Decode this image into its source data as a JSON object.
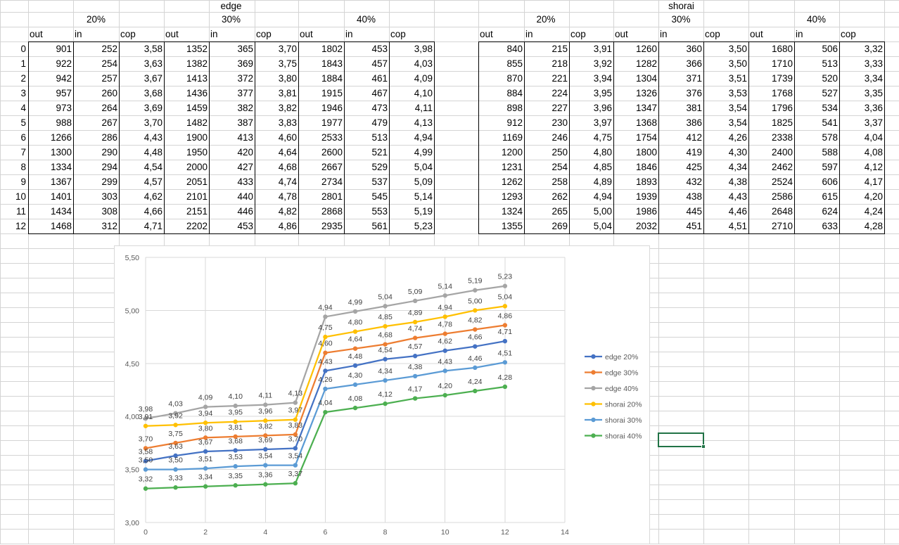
{
  "sheet": {
    "groups": [
      "edge",
      "shorai"
    ],
    "percents": [
      "20%",
      "30%",
      "40%"
    ],
    "col_labels": [
      "out",
      "in",
      "cop"
    ],
    "row_index": [
      "0",
      "1",
      "2",
      "3",
      "4",
      "5",
      "6",
      "7",
      "8",
      "9",
      "10",
      "11",
      "12"
    ],
    "edge": {
      "20%": {
        "out": [
          "901",
          "922",
          "942",
          "957",
          "973",
          "988",
          "1266",
          "1300",
          "1334",
          "1367",
          "1401",
          "1434",
          "1468"
        ],
        "in": [
          "252",
          "254",
          "257",
          "260",
          "264",
          "267",
          "286",
          "290",
          "294",
          "299",
          "303",
          "308",
          "312"
        ],
        "cop": [
          "3,58",
          "3,63",
          "3,67",
          "3,68",
          "3,69",
          "3,70",
          "4,43",
          "4,48",
          "4,54",
          "4,57",
          "4,62",
          "4,66",
          "4,71"
        ]
      },
      "30%": {
        "out": [
          "1352",
          "1382",
          "1413",
          "1436",
          "1459",
          "1482",
          "1900",
          "1950",
          "2000",
          "2051",
          "2101",
          "2151",
          "2202"
        ],
        "in": [
          "365",
          "369",
          "372",
          "377",
          "382",
          "387",
          "413",
          "420",
          "427",
          "433",
          "440",
          "446",
          "453"
        ],
        "cop": [
          "3,70",
          "3,75",
          "3,80",
          "3,81",
          "3,82",
          "3,83",
          "4,60",
          "4,64",
          "4,68",
          "4,74",
          "4,78",
          "4,82",
          "4,86"
        ]
      },
      "40%": {
        "out": [
          "1802",
          "1843",
          "1884",
          "1915",
          "1946",
          "1977",
          "2533",
          "2600",
          "2667",
          "2734",
          "2801",
          "2868",
          "2935"
        ],
        "in": [
          "453",
          "457",
          "461",
          "467",
          "473",
          "479",
          "513",
          "521",
          "529",
          "537",
          "545",
          "553",
          "561"
        ],
        "cop": [
          "3,98",
          "4,03",
          "4,09",
          "4,10",
          "4,11",
          "4,13",
          "4,94",
          "4,99",
          "5,04",
          "5,09",
          "5,14",
          "5,19",
          "5,23"
        ]
      }
    },
    "shorai": {
      "20%": {
        "out": [
          "840",
          "855",
          "870",
          "884",
          "898",
          "912",
          "1169",
          "1200",
          "1231",
          "1262",
          "1293",
          "1324",
          "1355"
        ],
        "in": [
          "215",
          "218",
          "221",
          "224",
          "227",
          "230",
          "246",
          "250",
          "254",
          "258",
          "262",
          "265",
          "269"
        ],
        "cop": [
          "3,91",
          "3,92",
          "3,94",
          "3,95",
          "3,96",
          "3,97",
          "4,75",
          "4,80",
          "4,85",
          "4,89",
          "4,94",
          "5,00",
          "5,04"
        ]
      },
      "30%": {
        "out": [
          "1260",
          "1282",
          "1304",
          "1326",
          "1347",
          "1368",
          "1754",
          "1800",
          "1846",
          "1893",
          "1939",
          "1986",
          "2032"
        ],
        "in": [
          "360",
          "366",
          "371",
          "376",
          "381",
          "386",
          "412",
          "419",
          "425",
          "432",
          "438",
          "445",
          "451"
        ],
        "cop": [
          "3,50",
          "3,50",
          "3,51",
          "3,53",
          "3,54",
          "3,54",
          "4,26",
          "4,30",
          "4,34",
          "4,38",
          "4,43",
          "4,46",
          "4,51"
        ]
      },
      "40%": {
        "out": [
          "1680",
          "1710",
          "1739",
          "1768",
          "1796",
          "1825",
          "2338",
          "2400",
          "2462",
          "2524",
          "2586",
          "2648",
          "2710"
        ],
        "in": [
          "506",
          "513",
          "520",
          "527",
          "534",
          "541",
          "578",
          "588",
          "597",
          "606",
          "615",
          "624",
          "633"
        ],
        "cop": [
          "3,32",
          "3,33",
          "3,34",
          "3,35",
          "3,36",
          "3,37",
          "4,04",
          "4,08",
          "4,12",
          "4,17",
          "4,20",
          "4,24",
          "4,28"
        ]
      }
    }
  },
  "chart_data": {
    "type": "line",
    "title": "",
    "xlabel": "",
    "ylabel": "",
    "xlim": [
      0,
      14
    ],
    "ylim": [
      3.0,
      5.5
    ],
    "x_ticks": [
      "0",
      "2",
      "4",
      "6",
      "8",
      "10",
      "12",
      "14"
    ],
    "y_ticks": [
      "3,00",
      "3,50",
      "4,00",
      "4,50",
      "5,00",
      "5,50"
    ],
    "x": [
      0,
      1,
      2,
      3,
      4,
      5,
      6,
      7,
      8,
      9,
      10,
      11,
      12
    ],
    "grid": true,
    "legend_position": "right",
    "series": [
      {
        "name": "edge 20%",
        "color": "#4472c4",
        "values": [
          3.58,
          3.63,
          3.67,
          3.68,
          3.69,
          3.7,
          4.43,
          4.48,
          4.54,
          4.57,
          4.62,
          4.66,
          4.71
        ],
        "labels": [
          "3,58",
          "3,63",
          "3,67",
          "3,68",
          "3,69",
          "3,70",
          "4,43",
          "4,48",
          "4,54",
          "4,57",
          "4,62",
          "4,66",
          "4,71"
        ]
      },
      {
        "name": "edge 30%",
        "color": "#ed7d31",
        "values": [
          3.7,
          3.75,
          3.8,
          3.81,
          3.82,
          3.83,
          4.6,
          4.64,
          4.68,
          4.74,
          4.78,
          4.82,
          4.86
        ],
        "labels": [
          "3,70",
          "3,75",
          "3,80",
          "3,81",
          "3,82",
          "3,83",
          "4,60",
          "4,64",
          "4,68",
          "4,74",
          "4,78",
          "4,82",
          "4,86"
        ]
      },
      {
        "name": "edge 40%",
        "color": "#a5a5a5",
        "values": [
          3.98,
          4.03,
          4.09,
          4.1,
          4.11,
          4.13,
          4.94,
          4.99,
          5.04,
          5.09,
          5.14,
          5.19,
          5.23
        ],
        "labels": [
          "3,98",
          "4,03",
          "4,09",
          "4,10",
          "4,11",
          "4,13",
          "4,94",
          "4,99",
          "5,04",
          "5,09",
          "5,14",
          "5,19",
          "5,23"
        ]
      },
      {
        "name": "shorai 20%",
        "color": "#ffc000",
        "values": [
          3.91,
          3.92,
          3.94,
          3.95,
          3.96,
          3.97,
          4.75,
          4.8,
          4.85,
          4.89,
          4.94,
          5.0,
          5.04
        ],
        "labels": [
          "3,91",
          "3,92",
          "3,94",
          "3,95",
          "3,96",
          "3,97",
          "4,75",
          "4,80",
          "4,85",
          "4,89",
          "4,94",
          "5,00",
          "5,04"
        ]
      },
      {
        "name": "shorai 30%",
        "color": "#5b9bd5",
        "values": [
          3.5,
          3.5,
          3.51,
          3.53,
          3.54,
          3.54,
          4.26,
          4.3,
          4.34,
          4.38,
          4.43,
          4.46,
          4.51
        ],
        "labels": [
          "3,50",
          "3,50",
          "3,51",
          "3,53",
          "3,54",
          "3,54",
          "4,26",
          "4,30",
          "4,34",
          "4,38",
          "4,43",
          "4,46",
          "4,51"
        ]
      },
      {
        "name": "shorai 40%",
        "color": "#4caf50",
        "values": [
          3.32,
          3.33,
          3.34,
          3.35,
          3.36,
          3.37,
          4.04,
          4.08,
          4.12,
          4.17,
          4.2,
          4.24,
          4.28
        ],
        "labels": [
          "3,32",
          "3,33",
          "3,34",
          "3,35",
          "3,36",
          "3,37",
          "4,04",
          "4,08",
          "4,12",
          "4,17",
          "4,20",
          "4,24",
          "4,28"
        ]
      }
    ]
  }
}
